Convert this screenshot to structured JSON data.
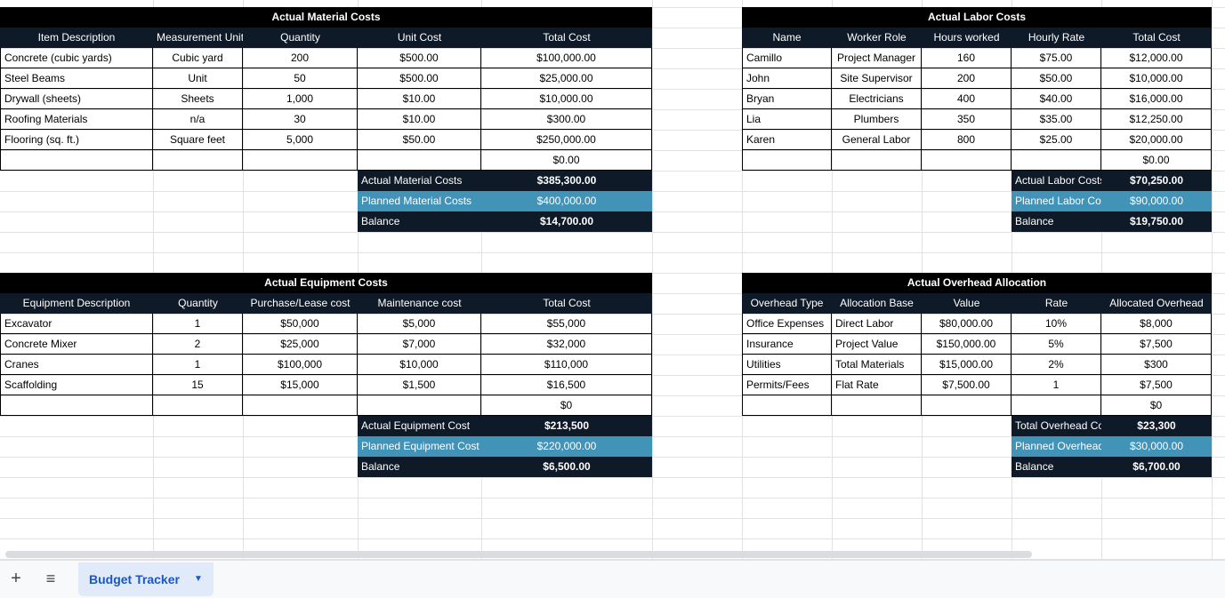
{
  "sheet": {
    "tab_label": "Budget Tracker",
    "add_icon": "plus-icon",
    "menu_icon": "hamburger-icon",
    "dropdown_icon": "caret-down-icon"
  },
  "colors": {
    "header_dark": "#0f1a28",
    "title_black": "#000000",
    "planned_blue": "#4193b8",
    "tab_active": "#1a56c4"
  },
  "material": {
    "title": "Actual Material Costs",
    "headers": [
      "Item Description",
      "Measurement Unit",
      "Quantity",
      "Unit Cost",
      "Total Cost"
    ],
    "rows": [
      [
        "Concrete (cubic yards)",
        "Cubic yard",
        "200",
        "$500.00",
        "$100,000.00"
      ],
      [
        "Steel Beams",
        "Unit",
        "50",
        "$500.00",
        "$25,000.00"
      ],
      [
        "Drywall (sheets)",
        "Sheets",
        "1,000",
        "$10.00",
        "$10,000.00"
      ],
      [
        "Roofing Materials",
        "n/a",
        "30",
        "$10.00",
        "$300.00"
      ],
      [
        "Flooring (sq. ft.)",
        "Square feet",
        "5,000",
        "$50.00",
        "$250,000.00"
      ],
      [
        "",
        "",
        "",
        "",
        "$0.00"
      ]
    ],
    "summary": [
      [
        "Actual Material Costs",
        "$385,300.00"
      ],
      [
        "Planned Material Costs",
        "$400,000.00"
      ],
      [
        "Balance",
        "$14,700.00"
      ]
    ]
  },
  "labor": {
    "title": "Actual Labor Costs",
    "headers": [
      "Name",
      "Worker Role",
      "Hours worked",
      "Hourly Rate",
      "Total Cost"
    ],
    "rows": [
      [
        "Camillo",
        "Project Manager",
        "160",
        "$75.00",
        "$12,000.00"
      ],
      [
        "John",
        "Site Supervisor",
        "200",
        "$50.00",
        "$10,000.00"
      ],
      [
        "Bryan",
        "Electricians",
        "400",
        "$40.00",
        "$16,000.00"
      ],
      [
        "Lia",
        "Plumbers",
        "350",
        "$35.00",
        "$12,250.00"
      ],
      [
        "Karen",
        "General Labor",
        "800",
        "$25.00",
        "$20,000.00"
      ],
      [
        "",
        "",
        "",
        "",
        "$0.00"
      ]
    ],
    "summary": [
      [
        "Actual Labor Costs",
        "$70,250.00"
      ],
      [
        "Planned Labor Co",
        "$90,000.00"
      ],
      [
        "Balance",
        "$19,750.00"
      ]
    ]
  },
  "equipment": {
    "title": "Actual Equipment Costs",
    "headers": [
      "Equipment Description",
      "Quantity",
      "Purchase/Lease cost",
      "Maintenance cost",
      "Total Cost"
    ],
    "rows": [
      [
        "Excavator",
        "1",
        "$50,000",
        "$5,000",
        "$55,000"
      ],
      [
        "Concrete Mixer",
        "2",
        "$25,000",
        "$7,000",
        "$32,000"
      ],
      [
        "Cranes",
        "1",
        "$100,000",
        "$10,000",
        "$110,000"
      ],
      [
        "Scaffolding",
        "15",
        "$15,000",
        "$1,500",
        "$16,500"
      ],
      [
        "",
        "",
        "",
        "",
        "$0"
      ]
    ],
    "summary": [
      [
        "Actual Equipment Cost",
        "$213,500"
      ],
      [
        "Planned Equipment Cost",
        "$220,000.00"
      ],
      [
        "Balance",
        "$6,500.00"
      ]
    ]
  },
  "overhead": {
    "title": "Actual Overhead Allocation",
    "headers": [
      "Overhead Type",
      "Allocation Base",
      "Value",
      "Rate",
      "Allocated Overhead"
    ],
    "rows": [
      [
        "Office Expenses",
        "Direct Labor",
        "$80,000.00",
        "10%",
        "$8,000"
      ],
      [
        "Insurance",
        "Project Value",
        "$150,000.00",
        "5%",
        "$7,500"
      ],
      [
        "Utilities",
        "Total Materials",
        "$15,000.00",
        "2%",
        "$300"
      ],
      [
        "Permits/Fees",
        "Flat Rate",
        "$7,500.00",
        "1",
        "$7,500"
      ],
      [
        "",
        "",
        "",
        "",
        "$0"
      ]
    ],
    "summary": [
      [
        "Total Overhead Co",
        "$23,300"
      ],
      [
        "Planned Overhead",
        "$30,000.00"
      ],
      [
        "Balance",
        "$6,700.00"
      ]
    ]
  }
}
